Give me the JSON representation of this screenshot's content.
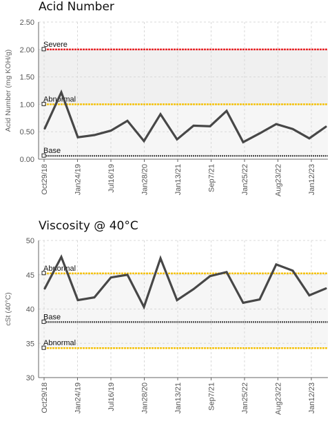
{
  "chart_data": [
    {
      "type": "line",
      "title": "Acid Number",
      "ylabel": "Acid Number (mg KOH/g)",
      "ylim": [
        0,
        2.5
      ],
      "yticks": [
        "0.00",
        "0.50",
        "1.00",
        "1.50",
        "2.00",
        "2.50"
      ],
      "xticks": [
        "Oct29/18",
        "Jan24/19",
        "Jul16/19",
        "Jan28/20",
        "Jan13/21",
        "Sep7/21",
        "Jan25/22",
        "Aug23/22",
        "Jan12/23"
      ],
      "grid": true,
      "bands": [
        {
          "from": 0.06,
          "to": 1.0,
          "color": "#f6f6f6"
        },
        {
          "from": 1.0,
          "to": 2.0,
          "color": "#f0f0f0"
        }
      ],
      "reference_lines": [
        {
          "label": "Severe",
          "value": 2.0,
          "color": "#e8272b"
        },
        {
          "label": "Abnormal",
          "value": 1.0,
          "color": "#f4c20d"
        },
        {
          "label": "Base",
          "value": 0.06,
          "color": "#555555"
        }
      ],
      "series": [
        {
          "color": "#474747",
          "values": [
            0.56,
            1.22,
            0.4,
            0.44,
            0.52,
            0.7,
            0.33,
            0.82,
            0.36,
            0.61,
            0.6,
            0.88,
            0.31,
            0.47,
            0.64,
            0.55,
            0.38,
            0.59
          ]
        }
      ]
    },
    {
      "type": "line",
      "title": "Viscosity @ 40°C",
      "ylabel": "cSt (40°C)",
      "ylim": [
        30,
        50
      ],
      "yticks": [
        "30",
        "35",
        "40",
        "45",
        "50"
      ],
      "xticks": [
        "Oct29/18",
        "Jan24/19",
        "Jul16/19",
        "Jan28/20",
        "Jan13/21",
        "Sep7/21",
        "Jan25/22",
        "Aug23/22",
        "Jan12/23"
      ],
      "grid": true,
      "bands": [
        {
          "from": 34.3,
          "to": 45.2,
          "color": "#f6f6f6"
        }
      ],
      "reference_lines": [
        {
          "label": "Abnormal",
          "value": 45.2,
          "color": "#f4c20d"
        },
        {
          "label": "Base",
          "value": 38.1,
          "color": "#555555"
        },
        {
          "label": "Abnormal",
          "value": 34.3,
          "color": "#f4c20d"
        }
      ],
      "series": [
        {
          "color": "#474747",
          "values": [
            43.0,
            47.6,
            41.3,
            41.7,
            44.6,
            45.0,
            40.3,
            47.4,
            41.3,
            42.9,
            44.8,
            45.4,
            40.9,
            41.4,
            46.5,
            45.6,
            42.0,
            43.0
          ]
        }
      ]
    }
  ]
}
